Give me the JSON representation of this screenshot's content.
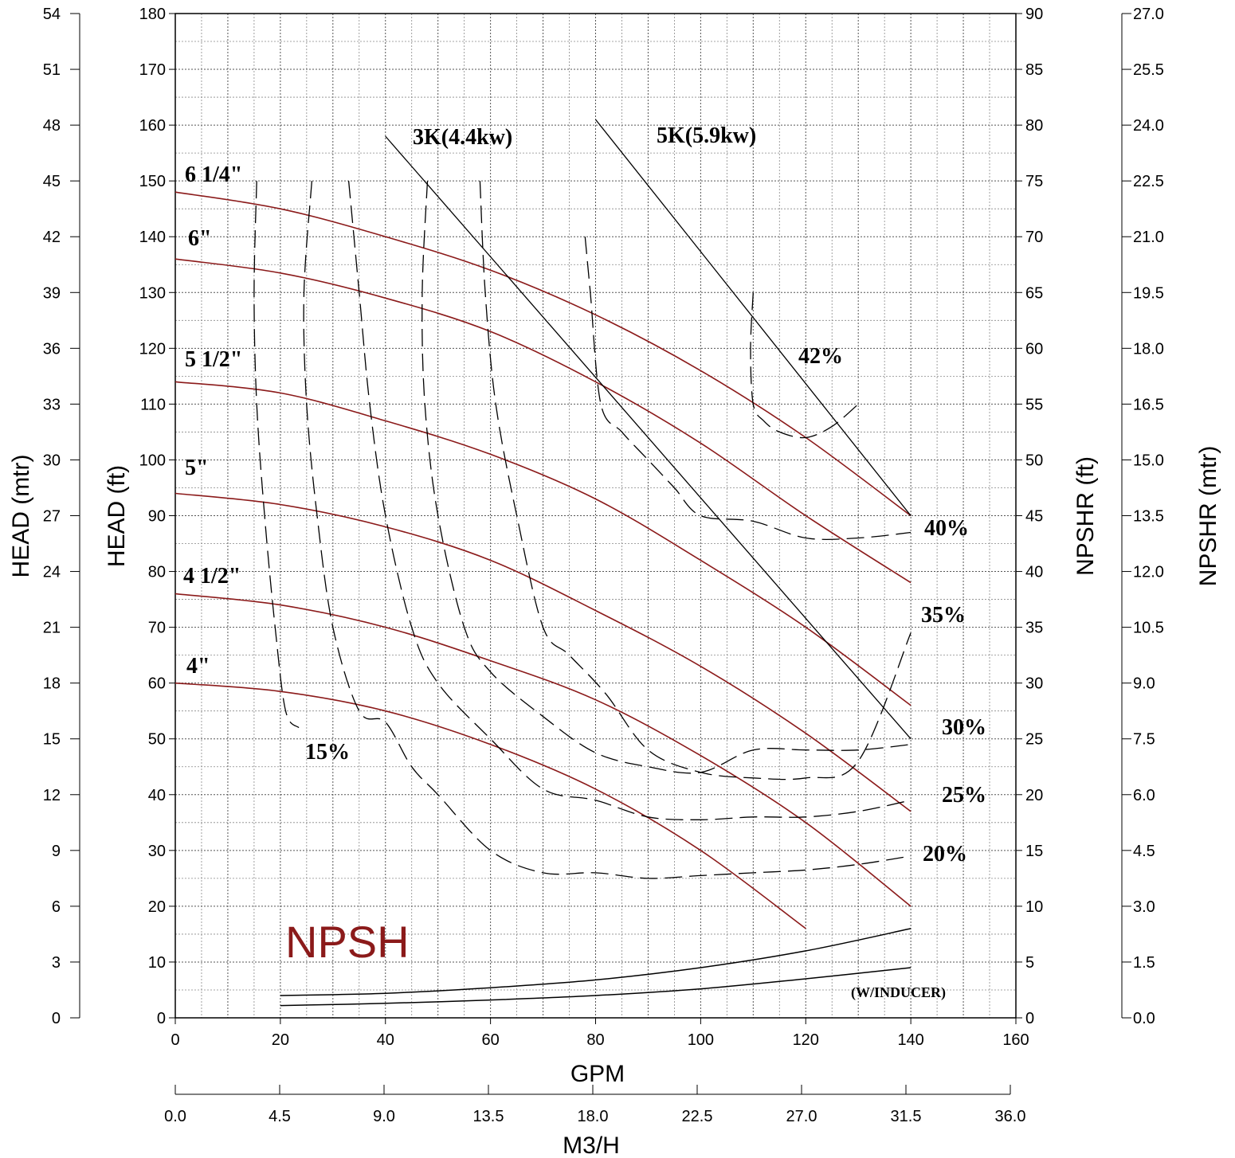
{
  "chart_data": {
    "type": "line",
    "title": "",
    "annotation": "NPSH",
    "inducer_note": "(W/INDUCER)",
    "colors": {
      "head_curve": "#8B1A1A",
      "npsh_text": "#8B1A1A",
      "lines": "#000000"
    },
    "x_axis": {
      "label": "GPM",
      "range": [
        0,
        160
      ],
      "ticks": [
        "0",
        "20",
        "40",
        "60",
        "80",
        "100",
        "120",
        "140",
        "160"
      ]
    },
    "x2_axis": {
      "label": "M3/H",
      "range": [
        0,
        36
      ],
      "ticks": [
        "0.0",
        "4.5",
        "9.0",
        "13.5",
        "18.0",
        "22.5",
        "27.0",
        "31.5",
        "36.0"
      ]
    },
    "y_left_ft": {
      "label": "HEAD (ft)",
      "range": [
        0,
        180
      ],
      "ticks": [
        "0",
        "10",
        "20",
        "30",
        "40",
        "50",
        "60",
        "70",
        "80",
        "90",
        "100",
        "110",
        "120",
        "130",
        "140",
        "150",
        "160",
        "170",
        "180"
      ]
    },
    "y_left_mtr": {
      "label": "HEAD (mtr)",
      "range": [
        0,
        54
      ],
      "ticks": [
        "0",
        "3",
        "6",
        "9",
        "12",
        "15",
        "18",
        "21",
        "24",
        "27",
        "30",
        "33",
        "36",
        "39",
        "42",
        "45",
        "48",
        "51",
        "54"
      ]
    },
    "y_right_ft": {
      "label": "NPSHR (ft)",
      "range": [
        0,
        90
      ],
      "ticks": [
        "0",
        "5",
        "10",
        "15",
        "20",
        "25",
        "30",
        "35",
        "40",
        "45",
        "50",
        "55",
        "60",
        "65",
        "70",
        "75",
        "80",
        "85",
        "90"
      ]
    },
    "y_right_mtr": {
      "label": "NPSHR (mtr)",
      "range": [
        0,
        27
      ],
      "ticks": [
        "0.0",
        "1.5",
        "3.0",
        "4.5",
        "6.0",
        "7.5",
        "9.0",
        "10.5",
        "12.0",
        "13.5",
        "15.0",
        "16.5",
        "18.0",
        "19.5",
        "21.0",
        "22.5",
        "24.0",
        "25.5",
        "27.0"
      ]
    },
    "grid": "dotted, minor 5 GPM x 5 ft",
    "impeller_curves": [
      {
        "name": "6 1/4\"",
        "x": [
          0,
          20,
          40,
          60,
          80,
          100,
          120,
          140
        ],
        "y": [
          148,
          145,
          140,
          134,
          126,
          116,
          104,
          90
        ]
      },
      {
        "name": "6\"",
        "x": [
          0,
          20,
          40,
          60,
          80,
          100,
          120,
          140
        ],
        "y": [
          136,
          133.5,
          129,
          123,
          114,
          103,
          90,
          78
        ]
      },
      {
        "name": "5 1/2\"",
        "x": [
          0,
          20,
          40,
          60,
          80,
          100,
          120,
          140
        ],
        "y": [
          114,
          112,
          107,
          101,
          93,
          82,
          70,
          56
        ]
      },
      {
        "name": "5\"",
        "x": [
          0,
          20,
          40,
          60,
          80,
          100,
          120,
          140
        ],
        "y": [
          94,
          92,
          88,
          82,
          73,
          63,
          51,
          37
        ]
      },
      {
        "name": "4 1/2\"",
        "x": [
          0,
          20,
          40,
          60,
          80,
          100,
          120,
          140
        ],
        "y": [
          76,
          74,
          70,
          64,
          57,
          47,
          35,
          20
        ]
      },
      {
        "name": "4\"",
        "x": [
          0,
          20,
          40,
          60,
          80,
          100,
          120
        ],
        "y": [
          60,
          58.5,
          55,
          49,
          41,
          30,
          16
        ]
      }
    ],
    "power_lines": [
      {
        "name": "3K(4.4kw)",
        "x": [
          40,
          140
        ],
        "y": [
          158,
          50
        ]
      },
      {
        "name": "5K(5.9kw)",
        "x": [
          80,
          140
        ],
        "y": [
          161,
          90
        ]
      }
    ],
    "efficiency_curves": [
      {
        "name": "15%",
        "x": [
          15.5,
          15,
          15.5,
          17,
          19,
          21,
          23.5
        ],
        "y": [
          150,
          130,
          110,
          90,
          70,
          55,
          52
        ]
      },
      {
        "name": "20%",
        "x": [
          26,
          24.5,
          25,
          27,
          30,
          35,
          40,
          45,
          50,
          60,
          70,
          80,
          90,
          100,
          110,
          120,
          130,
          140
        ],
        "y": [
          150,
          130,
          110,
          90,
          70,
          55,
          53,
          45,
          40,
          30,
          26,
          26,
          25,
          25.5,
          26,
          26.5,
          27.5,
          29
        ]
      },
      {
        "name": "25%",
        "x": [
          33,
          35,
          37,
          40,
          45,
          50,
          60,
          70,
          80,
          90,
          100,
          110,
          120,
          130,
          140
        ],
        "y": [
          150,
          130,
          110,
          90,
          70,
          60,
          50,
          41,
          39,
          36,
          35.5,
          36,
          36,
          37,
          39
        ]
      },
      {
        "name": "30%",
        "x": [
          48,
          47,
          47.5,
          50,
          55,
          60,
          70,
          80,
          90,
          100,
          110,
          120,
          130,
          140
        ],
        "y": [
          150,
          130,
          110,
          90,
          70,
          62,
          54,
          47.5,
          45,
          44,
          48,
          48,
          48,
          49
        ]
      },
      {
        "name": "35%",
        "x": [
          58,
          59,
          61,
          65,
          70,
          75,
          82,
          90,
          100,
          110,
          120,
          130,
          140
        ],
        "y": [
          150,
          130,
          110,
          90,
          70,
          65,
          58,
          48,
          44,
          43,
          43,
          46,
          69
        ]
      },
      {
        "name": "40%",
        "x": [
          78,
          79,
          81,
          85,
          90,
          95,
          100,
          110,
          120,
          130,
          140
        ],
        "y": [
          140,
          130,
          110,
          105,
          100,
          95,
          90,
          89,
          86,
          86,
          87
        ]
      },
      {
        "name": "42%",
        "x": [
          110,
          109.5,
          110,
          112,
          115,
          120,
          125,
          130
        ],
        "y": [
          130,
          120,
          110,
          107,
          105,
          104,
          106,
          110
        ]
      }
    ],
    "npshr_curves": [
      {
        "name": "NPSHR",
        "x": [
          20,
          40,
          60,
          80,
          100,
          120,
          140
        ],
        "y": [
          2,
          2.2,
          2.7,
          3.4,
          4.5,
          6,
          8
        ]
      },
      {
        "name": "NPSHR (W/INDUCER)",
        "x": [
          20,
          40,
          60,
          80,
          100,
          120,
          140
        ],
        "y": [
          1.1,
          1.3,
          1.6,
          2,
          2.6,
          3.5,
          4.5
        ]
      }
    ]
  }
}
